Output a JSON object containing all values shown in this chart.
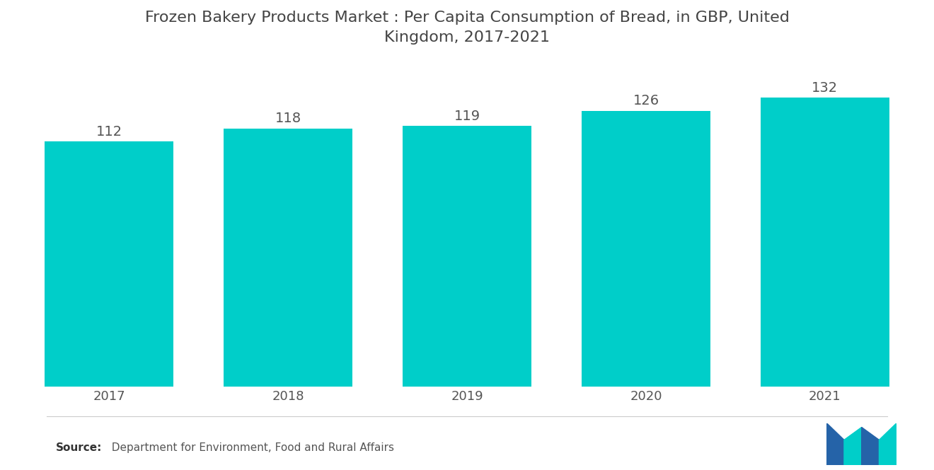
{
  "title": "Frozen Bakery Products Market : Per Capita Consumption of Bread, in GBP, United\nKingdom, 2017-2021",
  "categories": [
    "2017",
    "2018",
    "2019",
    "2020",
    "2021"
  ],
  "values": [
    112,
    118,
    119,
    126,
    132
  ],
  "bar_color": "#00CEC9",
  "background_color": "#ffffff",
  "label_color": "#555555",
  "title_color": "#444444",
  "source_bold": "Source:",
  "source_rest": "  Department for Environment, Food and Rural Affairs",
  "ylim": [
    0,
    145
  ],
  "bar_width": 0.72,
  "value_fontsize": 14,
  "axis_fontsize": 13,
  "title_fontsize": 16,
  "logo_blue": "#2563A8",
  "logo_teal": "#00CEC9"
}
